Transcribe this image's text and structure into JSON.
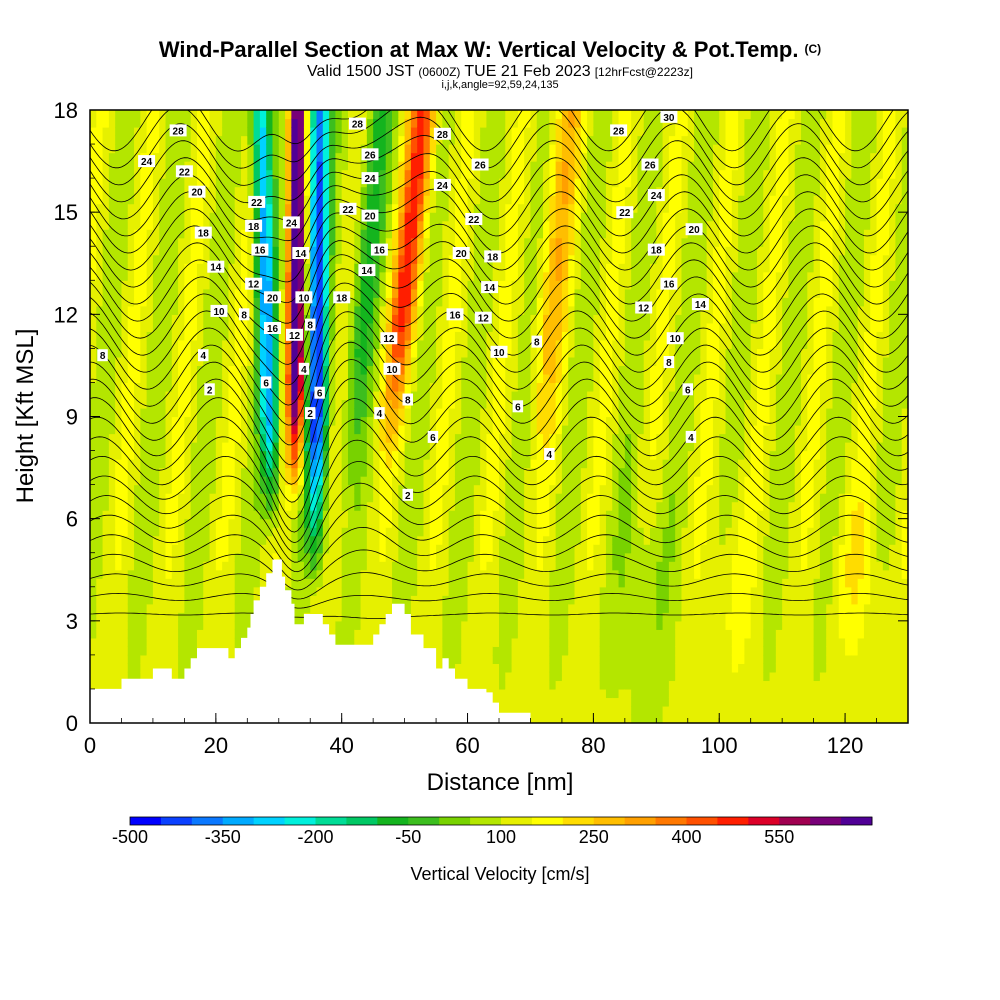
{
  "header": {
    "title": "Wind-Parallel Section at Max W: Vertical Velocity & Pot.Temp.",
    "copyright": "(C)",
    "valid_prefix": "Valid 1500 JST",
    "valid_utc": "(0600Z)",
    "valid_date": "TUE 21 Feb 2023",
    "forecast": "[12hrFcst@2223z]",
    "indices": "i,j,k,angle=92,59,24,135"
  },
  "chart_data": {
    "type": "heatmap",
    "xlabel": "Distance [nm]",
    "ylabel": "Height [Kft MSL]",
    "xlim": [
      0,
      130
    ],
    "ylim": [
      0,
      18
    ],
    "x_ticks": [
      "0",
      "20",
      "40",
      "60",
      "80",
      "100",
      "120"
    ],
    "x_tick_values": [
      0,
      20,
      40,
      60,
      80,
      100,
      120
    ],
    "y_ticks": [
      "0",
      "3",
      "6",
      "9",
      "12",
      "15",
      "18"
    ],
    "y_tick_values": [
      0,
      3,
      6,
      9,
      12,
      15,
      18
    ],
    "colorbar": {
      "label": "Vertical Velocity [cm/s]",
      "tick_labels": [
        "-500",
        "-350",
        "-200",
        "-50",
        "100",
        "250",
        "400",
        "550"
      ],
      "tick_values": [
        -500,
        -350,
        -200,
        -50,
        100,
        250,
        400,
        550
      ],
      "levels": [
        -500,
        -450,
        -400,
        -350,
        -300,
        -250,
        -200,
        -150,
        -100,
        -50,
        0,
        50,
        100,
        150,
        200,
        250,
        300,
        350,
        400,
        450,
        500,
        550,
        600
      ],
      "colors": [
        "#0000ff",
        "#0a40ff",
        "#0a78ff",
        "#00aaff",
        "#00d2ff",
        "#00f0dc",
        "#00dc96",
        "#00c864",
        "#14b41e",
        "#3cbe1e",
        "#78d200",
        "#b4e600",
        "#e6f000",
        "#ffff00",
        "#ffdc00",
        "#ffbe00",
        "#ffa000",
        "#ff7800",
        "#ff5000",
        "#ff1e00",
        "#dc0028",
        "#a00050",
        "#780078",
        "#500096"
      ]
    },
    "terrain_kft": [
      [
        0,
        1
      ],
      [
        5,
        1
      ],
      [
        5,
        1.3
      ],
      [
        10,
        1.3
      ],
      [
        10,
        1.6
      ],
      [
        12,
        1.6
      ],
      [
        12,
        1.6
      ],
      [
        13,
        1.6
      ],
      [
        13,
        1.3
      ],
      [
        15,
        1.3
      ],
      [
        15,
        1.6
      ],
      [
        16,
        1.6
      ],
      [
        16,
        1.9
      ],
      [
        17,
        1.9
      ],
      [
        17,
        2.2
      ],
      [
        21,
        2.2
      ],
      [
        21,
        2.2
      ],
      [
        22,
        2.2
      ],
      [
        22,
        1.9
      ],
      [
        23,
        1.9
      ],
      [
        23,
        2.2
      ],
      [
        24,
        2.2
      ],
      [
        24,
        2.5
      ],
      [
        25,
        2.5
      ],
      [
        25,
        2.8
      ],
      [
        25.5,
        2.8
      ],
      [
        25.5,
        3.2
      ],
      [
        26,
        3.2
      ],
      [
        26,
        3.6
      ],
      [
        27,
        3.6
      ],
      [
        27,
        4
      ],
      [
        28,
        4
      ],
      [
        28,
        4.4
      ],
      [
        29,
        4.4
      ],
      [
        29,
        4.8
      ],
      [
        30.5,
        4.8
      ],
      [
        30.5,
        4.3
      ],
      [
        31,
        4.3
      ],
      [
        31,
        3.9
      ],
      [
        32,
        3.9
      ],
      [
        32,
        3.5
      ],
      [
        32.5,
        3.5
      ],
      [
        32.5,
        2.9
      ],
      [
        34,
        2.9
      ],
      [
        34,
        3.2
      ],
      [
        37,
        3.2
      ],
      [
        37,
        2.9
      ],
      [
        38,
        2.9
      ],
      [
        38,
        2.6
      ],
      [
        39,
        2.6
      ],
      [
        39,
        2.3
      ],
      [
        45,
        2.3
      ],
      [
        45,
        2.6
      ],
      [
        46,
        2.6
      ],
      [
        46,
        2.9
      ],
      [
        47,
        2.9
      ],
      [
        47,
        3.2
      ],
      [
        48,
        3.2
      ],
      [
        48,
        3.5
      ],
      [
        50,
        3.5
      ],
      [
        50,
        3.2
      ],
      [
        51,
        3.2
      ],
      [
        51,
        2.6
      ],
      [
        53,
        2.6
      ],
      [
        53,
        2.2
      ],
      [
        55,
        2.2
      ],
      [
        55,
        1.6
      ],
      [
        56,
        1.6
      ],
      [
        56,
        1.9
      ],
      [
        57,
        1.9
      ],
      [
        57,
        1.6
      ],
      [
        58,
        1.6
      ],
      [
        58,
        1.3
      ],
      [
        60,
        1.3
      ],
      [
        60,
        1.0
      ],
      [
        63,
        1.0
      ],
      [
        63,
        0.9
      ],
      [
        64,
        0.9
      ],
      [
        64,
        0.6
      ],
      [
        65,
        0.6
      ],
      [
        65,
        0.3
      ],
      [
        70,
        0.3
      ],
      [
        70,
        0
      ],
      [
        130,
        0
      ]
    ],
    "contour_labels": [
      {
        "text": "8",
        "x": 2,
        "y": 10.8
      },
      {
        "text": "28",
        "x": 14,
        "y": 17.4
      },
      {
        "text": "24",
        "x": 9,
        "y": 16.5
      },
      {
        "text": "22",
        "x": 15,
        "y": 16.2
      },
      {
        "text": "20",
        "x": 17,
        "y": 15.6
      },
      {
        "text": "18",
        "x": 18,
        "y": 14.4
      },
      {
        "text": "14",
        "x": 20,
        "y": 13.4
      },
      {
        "text": "10",
        "x": 20.5,
        "y": 12.1
      },
      {
        "text": "4",
        "x": 18,
        "y": 10.8
      },
      {
        "text": "2",
        "x": 19,
        "y": 9.8
      },
      {
        "text": "22",
        "x": 26.5,
        "y": 15.3
      },
      {
        "text": "18",
        "x": 26,
        "y": 14.6
      },
      {
        "text": "16",
        "x": 27,
        "y": 13.9
      },
      {
        "text": "12",
        "x": 26,
        "y": 12.9
      },
      {
        "text": "8",
        "x": 24.5,
        "y": 12.0
      },
      {
        "text": "20",
        "x": 29,
        "y": 12.5
      },
      {
        "text": "16",
        "x": 29,
        "y": 11.6
      },
      {
        "text": "6",
        "x": 28,
        "y": 10.0
      },
      {
        "text": "24",
        "x": 32,
        "y": 14.7
      },
      {
        "text": "14",
        "x": 33.5,
        "y": 13.8
      },
      {
        "text": "10",
        "x": 34,
        "y": 12.5
      },
      {
        "text": "12",
        "x": 32.5,
        "y": 11.4
      },
      {
        "text": "4",
        "x": 34,
        "y": 10.4
      },
      {
        "text": "8",
        "x": 35,
        "y": 11.7
      },
      {
        "text": "2",
        "x": 35,
        "y": 9.1
      },
      {
        "text": "6",
        "x": 36.5,
        "y": 9.7
      },
      {
        "text": "28",
        "x": 42.5,
        "y": 17.6
      },
      {
        "text": "26",
        "x": 44.5,
        "y": 16.7
      },
      {
        "text": "24",
        "x": 44.5,
        "y": 16.0
      },
      {
        "text": "22",
        "x": 41,
        "y": 15.1
      },
      {
        "text": "20",
        "x": 44.5,
        "y": 14.9
      },
      {
        "text": "18",
        "x": 40,
        "y": 12.5
      },
      {
        "text": "16",
        "x": 46,
        "y": 13.9
      },
      {
        "text": "14",
        "x": 44,
        "y": 13.3
      },
      {
        "text": "12",
        "x": 47.5,
        "y": 11.3
      },
      {
        "text": "10",
        "x": 48,
        "y": 10.4
      },
      {
        "text": "8",
        "x": 50.5,
        "y": 9.5
      },
      {
        "text": "4",
        "x": 46,
        "y": 9.1
      },
      {
        "text": "6",
        "x": 54.5,
        "y": 8.4
      },
      {
        "text": "2",
        "x": 50.5,
        "y": 6.7
      },
      {
        "text": "28",
        "x": 56,
        "y": 17.3
      },
      {
        "text": "26",
        "x": 62,
        "y": 16.4
      },
      {
        "text": "24",
        "x": 56,
        "y": 15.8
      },
      {
        "text": "22",
        "x": 61,
        "y": 14.8
      },
      {
        "text": "20",
        "x": 59,
        "y": 13.8
      },
      {
        "text": "18",
        "x": 64,
        "y": 13.7
      },
      {
        "text": "16",
        "x": 58,
        "y": 12.0
      },
      {
        "text": "14",
        "x": 63.5,
        "y": 12.8
      },
      {
        "text": "12",
        "x": 62.5,
        "y": 11.9
      },
      {
        "text": "10",
        "x": 65,
        "y": 10.9
      },
      {
        "text": "8",
        "x": 71,
        "y": 11.2
      },
      {
        "text": "6",
        "x": 68,
        "y": 9.3
      },
      {
        "text": "4",
        "x": 73,
        "y": 7.9
      },
      {
        "text": "30",
        "x": 92,
        "y": 17.8
      },
      {
        "text": "28",
        "x": 84,
        "y": 17.4
      },
      {
        "text": "26",
        "x": 89,
        "y": 16.4
      },
      {
        "text": "24",
        "x": 90,
        "y": 15.5
      },
      {
        "text": "22",
        "x": 85,
        "y": 15.0
      },
      {
        "text": "20",
        "x": 96,
        "y": 14.5
      },
      {
        "text": "18",
        "x": 90,
        "y": 13.9
      },
      {
        "text": "16",
        "x": 92,
        "y": 12.9
      },
      {
        "text": "14",
        "x": 97,
        "y": 12.3
      },
      {
        "text": "12",
        "x": 88,
        "y": 12.2
      },
      {
        "text": "10",
        "x": 93,
        "y": 11.3
      },
      {
        "text": "8",
        "x": 92,
        "y": 10.6
      },
      {
        "text": "6",
        "x": 95,
        "y": 9.8
      },
      {
        "text": "4",
        "x": 95.5,
        "y": 8.4
      }
    ]
  }
}
